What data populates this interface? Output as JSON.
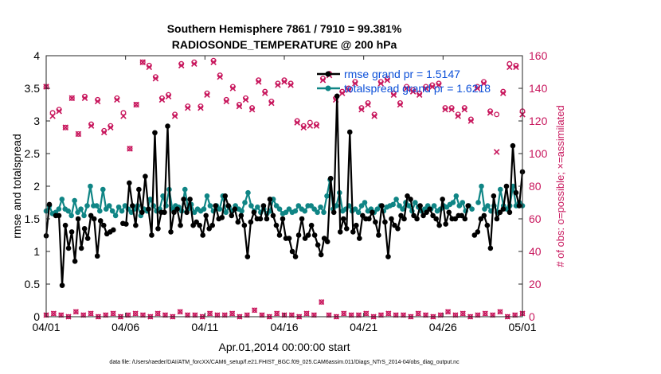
{
  "chart_data": {
    "type": "line",
    "title_line1": "Southern Hemisphere 7861 / 7910 = 99.381%",
    "title_line2": "RADIOSONDE_TEMPERATURE @ 200 hPa",
    "xlabel": "Apr.01,2014 00:00:00 start",
    "ylabel": "rmse and totalspread",
    "y2label": "# of obs: o=possible; ×=assimilated",
    "footnote": "data file: /Users/raeder/DAI/ATM_forcXX/CAM6_setup/f.e21.FHIST_BGC.f09_025.CAM6assim.011/Diags_NTrS_2014-04/obs_diag_output.nc",
    "xlim": [
      0,
      30
    ],
    "ylim": [
      0,
      4
    ],
    "y2lim": [
      0,
      160
    ],
    "xtick_values": [
      0,
      5,
      10,
      15,
      20,
      25,
      30
    ],
    "xtick_labels": [
      "04/01",
      "04/06",
      "04/11",
      "04/16",
      "04/21",
      "04/26",
      "05/01"
    ],
    "ytick_values": [
      0,
      0.5,
      1,
      1.5,
      2,
      2.5,
      3,
      3.5,
      4
    ],
    "ytick_labels": [
      "0",
      "0.5",
      "1",
      "1.5",
      "2",
      "2.5",
      "3",
      "3.5",
      "4"
    ],
    "y2tick_values": [
      0,
      20,
      40,
      60,
      80,
      100,
      120,
      140,
      160
    ],
    "y2tick_labels": [
      "0",
      "20",
      "40",
      "60",
      "80",
      "100",
      "120",
      "140",
      "160"
    ],
    "x_step": 0.25,
    "x_start": 0,
    "rmse": {
      "name": "rmse",
      "legend": "rmse grand pr = 1.5147",
      "color": "#000000",
      "segments": [
        [
          1.24,
          1.72,
          null,
          1.55,
          1.55,
          0.48,
          1.4,
          1.05,
          1.3,
          0.85,
          1.5,
          1.05,
          1.35,
          1.2,
          1.55,
          1.5,
          0.93,
          1.47,
          1.4,
          1.27,
          1.3,
          1.33,
          null,
          null,
          1.43,
          1.42,
          2.05,
          1.7,
          1.4,
          1.95,
          1.6,
          2.15,
          1.65,
          1.25,
          2.82,
          1.35,
          1.6,
          1.6,
          2.92,
          1.3,
          1.6,
          1.65,
          1.4,
          1.8,
          1.6,
          1.8,
          1.4,
          1.45,
          1.4,
          1.25,
          1.55,
          1.35,
          1.4,
          1.7,
          1.5,
          1.52,
          1.85,
          1.7,
          1.55,
          1.65,
          1.45,
          1.55,
          1.4,
          0.92,
          1.45,
          1.6,
          1.5,
          1.5,
          1.7,
          1.5,
          1.8,
          1.55,
          1.4,
          1.25,
          1.5,
          1.2,
          1.2,
          1.0,
          0.92,
          1.25,
          1.5,
          1.2,
          1.25,
          1.4,
          1.25,
          1.1,
          0.95,
          1.2,
          1.15,
          2.12,
          1.6,
          3.38,
          1.3,
          1.5,
          1.35,
          2.83,
          1.3,
          1.4,
          1.2,
          1.55,
          1.5,
          1.5,
          1.6,
          1.45,
          1.25,
          1.7,
          1.45,
          0.92,
          1.5,
          1.4,
          1.35,
          1.55,
          1.5,
          1.85,
          1.8,
          1.55,
          1.5,
          1.7,
          1.55,
          1.6,
          1.65,
          1.55,
          1.5,
          1.4,
          1.8,
          1.42,
          1.6,
          1.5,
          1.5,
          1.55,
          1.55,
          1.5,
          1.7
        ],
        [
          1.25,
          1.3,
          1.5,
          1.55,
          1.4,
          1.05,
          1.85,
          1.5,
          1.6,
          1.65,
          2.0,
          1.6,
          2.62,
          1.9,
          1.7,
          2.22
        ]
      ]
    },
    "totalspread": {
      "name": "totalspread",
      "legend": "totalspread grand pr = 1.6218",
      "color": "#0f8585",
      "segments": [
        [
          1.62,
          1.7,
          1.58,
          1.6,
          1.65,
          1.8,
          1.65,
          1.62,
          1.55,
          1.78,
          1.6,
          1.65,
          1.55,
          1.7,
          2.0,
          1.7,
          1.7,
          1.62,
          1.95,
          1.65,
          1.7,
          1.62,
          1.55,
          1.68,
          1.62,
          1.7,
          1.65,
          1.6,
          1.65,
          1.7,
          1.55,
          1.65,
          1.62,
          1.8,
          1.7,
          1.62,
          1.65,
          1.85,
          1.7,
          1.95,
          1.65,
          1.7,
          1.68,
          1.62,
          1.95,
          1.65,
          1.72,
          1.6,
          1.65,
          1.62,
          1.65,
          1.85,
          1.7,
          1.62,
          1.7,
          1.65,
          1.85,
          1.6,
          1.68,
          1.62,
          1.7,
          1.65,
          1.62,
          1.75,
          1.9,
          1.7,
          1.62,
          1.68,
          1.6,
          1.65,
          1.58,
          1.62,
          1.8,
          1.7,
          1.65,
          1.58,
          1.6,
          1.65,
          1.6,
          1.62,
          1.7,
          1.65,
          1.62,
          1.7,
          1.7,
          1.65,
          1.6,
          1.68,
          1.6,
          1.85,
          2.1,
          1.65,
          1.7,
          1.9,
          1.62,
          1.65,
          1.7,
          1.62,
          1.65,
          1.6,
          1.7,
          1.75,
          1.62,
          1.65,
          1.6,
          1.65,
          1.7,
          1.62,
          1.68,
          1.7,
          1.72,
          1.8,
          1.7,
          1.65,
          1.75,
          1.7,
          1.62,
          1.75,
          1.68,
          1.62,
          1.65,
          1.7,
          1.65,
          1.7,
          1.62,
          1.65,
          1.7,
          1.68,
          1.72,
          1.75,
          1.85,
          1.7,
          1.75,
          1.62,
          1.7,
          1.65
        ],
        [
          1.75,
          2.0,
          1.65,
          1.7,
          1.62,
          1.7,
          1.6,
          1.95,
          1.7,
          1.65,
          1.7,
          2.0,
          1.7,
          1.75,
          1.7
        ]
      ]
    },
    "obs_possible": {
      "name": "obs possible",
      "marker": "o",
      "color": "#c8175d",
      "values": [
        141,
        125,
        127,
        116,
        134,
        112,
        135,
        118,
        133,
        114,
        117,
        134,
        125,
        103,
        130,
        156,
        154,
        147,
        134,
        136,
        124,
        155,
        129,
        156,
        129,
        137,
        157,
        148,
        133,
        141,
        130,
        134,
        128,
        145,
        138,
        132,
        143,
        145,
        143,
        120,
        117,
        119,
        118,
        146,
        149,
        134,
        138,
        140,
        144,
        128,
        131,
        124,
        144,
        146,
        137,
        131,
        141,
        139,
        137,
        141,
        142,
        143,
        128,
        128,
        124,
        128,
        121,
        141,
        144,
        126,
        124,
        138,
        155,
        154,
        126
      ]
    },
    "obs_assimilated": {
      "name": "obs assimilated",
      "marker": "x",
      "color": "#c8175d",
      "values": [
        141,
        123,
        126,
        116,
        134,
        112,
        134,
        117,
        132,
        113,
        116,
        133,
        123,
        103,
        130,
        156,
        153,
        146,
        133,
        135,
        123,
        154,
        128,
        155,
        128,
        136,
        156,
        147,
        132,
        140,
        129,
        133,
        127,
        144,
        137,
        131,
        142,
        144,
        142,
        119,
        116,
        117,
        117,
        145,
        148,
        133,
        137,
        139,
        143,
        127,
        130,
        123,
        143,
        145,
        136,
        130,
        140,
        138,
        136,
        140,
        141,
        142,
        127,
        127,
        123,
        127,
        120,
        140,
        143,
        125,
        101,
        137,
        153,
        153,
        124
      ]
    },
    "obs_possible_low": [
      1,
      2,
      1,
      0,
      3,
      1,
      2,
      0,
      1,
      2,
      0,
      1,
      2,
      1,
      0,
      2,
      1,
      0,
      3,
      1,
      1,
      0,
      2,
      1,
      1,
      2,
      0,
      1,
      4,
      1,
      0,
      2,
      1,
      1,
      0,
      2,
      1,
      9,
      1,
      0,
      2,
      1,
      1,
      2,
      0,
      1,
      2,
      1,
      1,
      0,
      2,
      1,
      0,
      1,
      3,
      1,
      2,
      0,
      1,
      2,
      1,
      3,
      0,
      1,
      2
    ]
  }
}
